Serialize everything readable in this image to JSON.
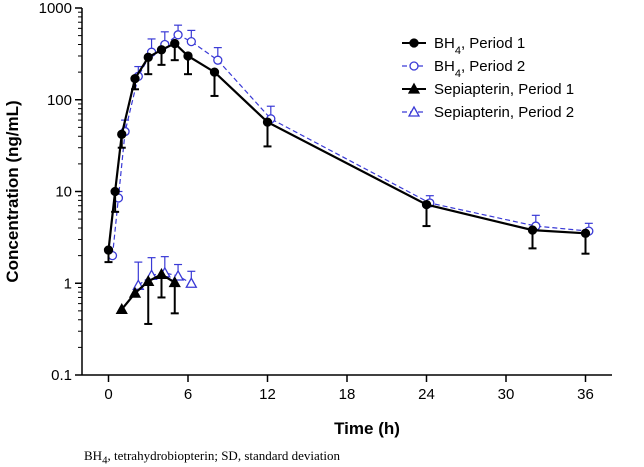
{
  "chart_data": {
    "type": "line",
    "yscale": "log",
    "ylabel": "Concentration (ng/mL)",
    "xlabel": "Time (h)",
    "ylim": [
      0.1,
      1000
    ],
    "xlim": [
      -2,
      38
    ],
    "yticks": [
      {
        "value": 0.1,
        "label": "0.1"
      },
      {
        "value": 1,
        "label": "1"
      },
      {
        "value": 10,
        "label": "10"
      },
      {
        "value": 100,
        "label": "100"
      },
      {
        "value": 1000,
        "label": "1000"
      }
    ],
    "xticks": [
      {
        "value": 0,
        "label": "0"
      },
      {
        "value": 6,
        "label": "6"
      },
      {
        "value": 12,
        "label": "12"
      },
      {
        "value": 18,
        "label": "18"
      },
      {
        "value": 24,
        "label": "24"
      },
      {
        "value": 30,
        "label": "30"
      },
      {
        "value": 36,
        "label": "36"
      }
    ],
    "legend_position": "top-right",
    "series": [
      {
        "name": "BH4, Period 1",
        "legend_main": "BH",
        "legend_sub": "4",
        "legend_rest": ", Period 1",
        "color": "#000000",
        "marker": "filled-circle",
        "dashed": false,
        "err_dir": "down",
        "points": [
          {
            "x": 0,
            "y": 2.3,
            "err": 1.7
          },
          {
            "x": 0.5,
            "y": 10,
            "err": 6
          },
          {
            "x": 1,
            "y": 42,
            "err": 30
          },
          {
            "x": 2,
            "y": 170,
            "err": 130
          },
          {
            "x": 3,
            "y": 290,
            "err": 190
          },
          {
            "x": 4,
            "y": 350,
            "err": 240
          },
          {
            "x": 5,
            "y": 410,
            "err": 270
          },
          {
            "x": 6,
            "y": 300,
            "err": 190
          },
          {
            "x": 8,
            "y": 200,
            "err": 110
          },
          {
            "x": 12,
            "y": 57,
            "err": 31
          },
          {
            "x": 24,
            "y": 7.2,
            "err": 4.2
          },
          {
            "x": 32,
            "y": 3.8,
            "err": 2.4
          },
          {
            "x": 36,
            "y": 3.5,
            "err": 2.1
          }
        ]
      },
      {
        "name": "BH4, Period 2",
        "legend_main": "BH",
        "legend_sub": "4",
        "legend_rest": ", Period 2",
        "color": "#3a3ad6",
        "marker": "open-circle",
        "dashed": true,
        "err_dir": "up",
        "points": [
          {
            "x": 0.3,
            "y": 2.0,
            "err": 2.0
          },
          {
            "x": 0.75,
            "y": 8.5,
            "err": 10
          },
          {
            "x": 1.25,
            "y": 45,
            "err": 60
          },
          {
            "x": 2.25,
            "y": 180,
            "err": 230
          },
          {
            "x": 3.25,
            "y": 330,
            "err": 460
          },
          {
            "x": 4.25,
            "y": 400,
            "err": 550
          },
          {
            "x": 5.25,
            "y": 510,
            "err": 650
          },
          {
            "x": 6.25,
            "y": 430,
            "err": 570
          },
          {
            "x": 8.25,
            "y": 270,
            "err": 370
          },
          {
            "x": 12.25,
            "y": 62,
            "err": 85
          },
          {
            "x": 24.25,
            "y": 7.5,
            "err": 9.0
          },
          {
            "x": 32.25,
            "y": 4.2,
            "err": 5.5
          },
          {
            "x": 36.25,
            "y": 3.7,
            "err": 4.5
          }
        ]
      },
      {
        "name": "Sepiapterin, Period 1",
        "legend_main": "Sepiapterin, Period 1",
        "legend_sub": "",
        "legend_rest": "",
        "color": "#000000",
        "marker": "filled-triangle",
        "dashed": false,
        "err_dir": "down",
        "points": [
          {
            "x": 1,
            "y": 0.52,
            "err": null
          },
          {
            "x": 2,
            "y": 0.78,
            "err": null
          },
          {
            "x": 3,
            "y": 1.05,
            "err": 0.36
          },
          {
            "x": 4,
            "y": 1.25,
            "err": 0.7
          },
          {
            "x": 5,
            "y": 1.02,
            "err": 0.47
          }
        ]
      },
      {
        "name": "Sepiapterin, Period 2",
        "legend_main": "Sepiapterin, Period 2",
        "legend_sub": "",
        "legend_rest": "",
        "color": "#3a3ad6",
        "marker": "open-triangle",
        "dashed": true,
        "err_dir": "up",
        "points": [
          {
            "x": 2.25,
            "y": 0.95,
            "err": 1.7
          },
          {
            "x": 3.25,
            "y": 1.22,
            "err": 1.9
          },
          {
            "x": 4.25,
            "y": 1.3,
            "err": 1.95
          },
          {
            "x": 5.25,
            "y": 1.2,
            "err": 1.6
          },
          {
            "x": 6.25,
            "y": 1.0,
            "err": 1.35
          }
        ]
      }
    ]
  },
  "footnote": "BH4, tetrahydrobiopterin; SD, standard deviation",
  "footnote_parts": {
    "main": "BH",
    "sub": "4",
    "rest": ", tetrahydrobiopterin; SD, standard deviation"
  }
}
